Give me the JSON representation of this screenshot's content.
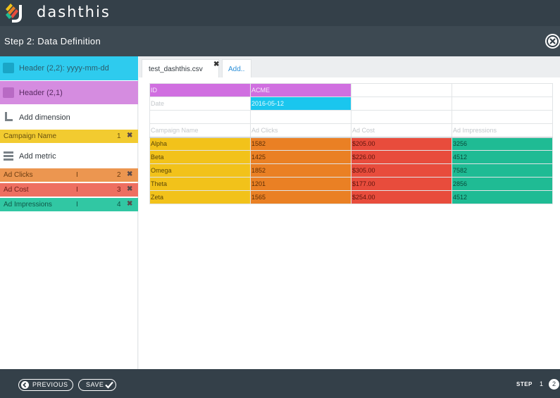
{
  "app": {
    "logo_text": "dashthis"
  },
  "step_header": {
    "title": "Step 2: Data Definition"
  },
  "sidebar": {
    "header_date": "Header (2,2): yyyy-mm-dd",
    "header_id": "Header (2,1)",
    "add_dimension": "Add dimension",
    "add_metric": "Add metric",
    "dimensions": [
      {
        "name": "Campaign Name",
        "index": "1"
      }
    ],
    "metrics": [
      {
        "name": "Ad Clicks",
        "bar": "I",
        "index": "2"
      },
      {
        "name": "Ad Cost",
        "bar": "I",
        "index": "3"
      },
      {
        "name": "Ad Impressions",
        "bar": "I",
        "index": "4"
      }
    ],
    "remove_glyph": "✖"
  },
  "tabs": {
    "file": "test_dashthis.csv",
    "close_glyph": "✖",
    "add": "Add.."
  },
  "grid": {
    "rows": [
      [
        "ID",
        "ACME",
        "",
        ""
      ],
      [
        "Date",
        "2016-05-12",
        "",
        ""
      ],
      [
        "",
        "",
        "",
        ""
      ],
      [
        "Campaign Name",
        "Ad Clicks",
        "Ad Cost",
        "Ad Impressions"
      ],
      [
        "Alpha",
        "1582",
        "$205.00",
        "3256"
      ],
      [
        "Beta",
        "1425",
        "$226.00",
        "4512"
      ],
      [
        "Omega",
        "1852",
        "$305.00",
        "7582"
      ],
      [
        "Theta",
        "1201",
        "$177.00",
        "2856"
      ],
      [
        "Zeta",
        "1565",
        "$254.00",
        "4512"
      ]
    ]
  },
  "footer": {
    "previous": "PREVIOUS",
    "save": "SAVE",
    "step_label": "STEP",
    "step_current": "1",
    "step_next": "2"
  },
  "colors": {
    "topbar": "#344049",
    "header_date": "#2ecbee",
    "header_id": "#d58ce0",
    "dimension": "#f2cb30",
    "ad_clicks": "#ec9650",
    "ad_cost": "#ee6f61",
    "ad_impressions": "#31c7a3"
  }
}
